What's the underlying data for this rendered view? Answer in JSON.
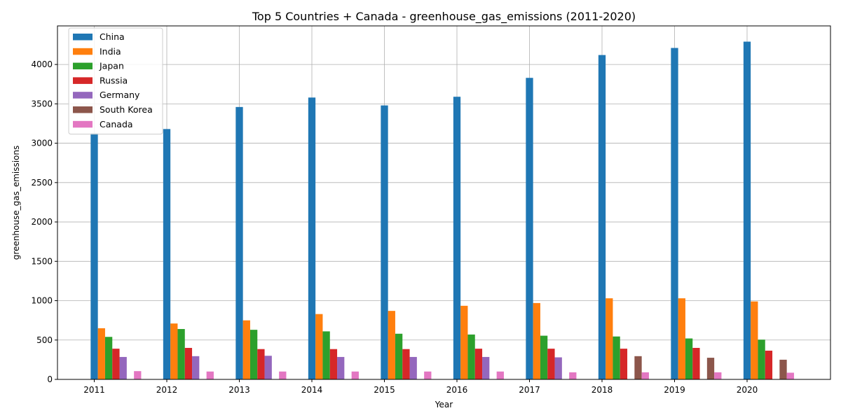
{
  "chart_data": {
    "type": "bar",
    "title": "Top 5 Countries + Canada - greenhouse_gas_emissions (2011-2020)",
    "xlabel": "Year",
    "ylabel": "greenhouse_gas_emissions",
    "categories": [
      "2011",
      "2012",
      "2013",
      "2014",
      "2015",
      "2016",
      "2017",
      "2018",
      "2019",
      "2020"
    ],
    "ylim": [
      0,
      4490
    ],
    "yticks": [
      "0",
      "500",
      "1000",
      "1500",
      "2000",
      "2500",
      "3000",
      "3500",
      "4000"
    ],
    "grid": true,
    "legend_position": "top-left",
    "series": [
      {
        "name": "China",
        "color": "#1f77b4",
        "values": [
          3130,
          3180,
          3460,
          3580,
          3480,
          3590,
          3830,
          4120,
          4210,
          4290
        ]
      },
      {
        "name": "India",
        "color": "#ff7f0e",
        "values": [
          650,
          710,
          750,
          830,
          870,
          935,
          970,
          1030,
          1030,
          990
        ]
      },
      {
        "name": "Japan",
        "color": "#2ca02c",
        "values": [
          540,
          640,
          630,
          610,
          580,
          570,
          555,
          545,
          520,
          505
        ]
      },
      {
        "name": "Russia",
        "color": "#d62728",
        "values": [
          390,
          400,
          385,
          385,
          385,
          390,
          390,
          390,
          400,
          365
        ]
      },
      {
        "name": "Germany",
        "color": "#9467bd",
        "values": [
          285,
          295,
          300,
          285,
          285,
          285,
          280,
          null,
          null,
          null
        ]
      },
      {
        "name": "South Korea",
        "color": "#8c564b",
        "values": [
          null,
          null,
          null,
          null,
          null,
          null,
          null,
          295,
          275,
          250
        ]
      },
      {
        "name": "Canada",
        "color": "#e377c2",
        "values": [
          105,
          100,
          100,
          100,
          100,
          100,
          90,
          90,
          90,
          85
        ]
      }
    ]
  }
}
